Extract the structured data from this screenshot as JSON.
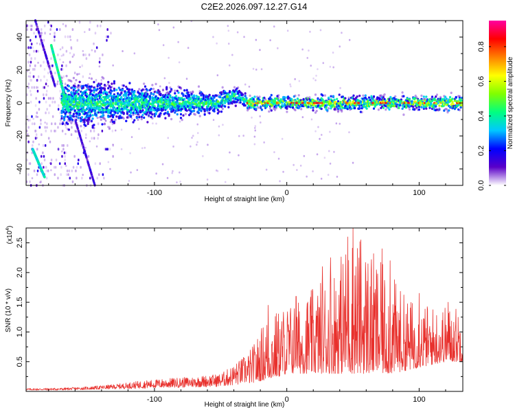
{
  "figure_title": "C2E2.2026.097.12.27.G14",
  "chart_data": [
    {
      "type": "heatmap",
      "title": "C2E2.2026.097.12.27.G14",
      "xlabel": "Height of straight line (km)",
      "ylabel": "Frequency (Hz)",
      "xlim": [
        -197,
        133
      ],
      "ylim": [
        -50,
        50
      ],
      "x_ticks": [
        -100,
        0,
        100
      ],
      "y_ticks": [
        -40,
        -20,
        0,
        20,
        40
      ],
      "colorbar": {
        "label": "Normalized spectral amplitude",
        "range": [
          0,
          0.95
        ],
        "ticks": [
          0.0,
          0.2,
          0.4,
          0.6,
          0.8
        ],
        "tick_labels": [
          "0.0",
          "0.2",
          "0.4",
          "0.6",
          "0.8"
        ],
        "colormap": [
          "#ffffff",
          "#5a00c8",
          "#0000ff",
          "#00c8ff",
          "#00ff80",
          "#80ff00",
          "#ffff00",
          "#ff8000",
          "#ff0000",
          "#ff00a0"
        ]
      },
      "features": {
        "main_band_center_hz": 0,
        "main_band_width_hz_near_side": 14,
        "main_band_width_hz_far_side": 5,
        "band_bump_km": [
          -50,
          -40
        ],
        "band_bump_hz": 4,
        "noise_region_km": [
          -197,
          -130
        ],
        "streak_1": {
          "x_km": [
            -178,
            -165
          ],
          "y_hz": [
            35,
            -5
          ]
        },
        "streak_2": {
          "x_km": [
            -192,
            -183
          ],
          "y_hz": [
            -28,
            -45
          ]
        }
      }
    },
    {
      "type": "line",
      "title": "",
      "xlabel": "Height of straight line (km)",
      "ylabel": "SNR (10 * v/v)",
      "scale_label": "(x10",
      "scale_exponent": "4",
      "scale_label_close": ")",
      "xlim": [
        -197,
        133
      ],
      "ylim": [
        0,
        2.75
      ],
      "x_ticks": [
        -100,
        0,
        100
      ],
      "y_ticks": [
        0.5,
        1.0,
        1.5,
        2.0,
        2.5
      ],
      "y_tick_labels": [
        "0.5",
        "1.0",
        "1.5",
        "2.0",
        "2.5"
      ],
      "color": "#e8302c",
      "envelope": {
        "x": [
          -197,
          -170,
          -150,
          -130,
          -110,
          -90,
          -70,
          -50,
          -40,
          -32,
          -25,
          -15,
          -5,
          0,
          10,
          20,
          30,
          40,
          50,
          60,
          70,
          80,
          90,
          100,
          110,
          120,
          133
        ],
        "min": [
          0.02,
          0.02,
          0.03,
          0.04,
          0.05,
          0.06,
          0.07,
          0.08,
          0.1,
          0.12,
          0.15,
          0.2,
          0.25,
          0.3,
          0.3,
          0.3,
          0.3,
          0.3,
          0.3,
          0.3,
          0.3,
          0.3,
          0.35,
          0.4,
          0.45,
          0.5,
          0.5
        ],
        "max": [
          0.05,
          0.06,
          0.08,
          0.12,
          0.18,
          0.22,
          0.25,
          0.3,
          0.45,
          0.6,
          0.8,
          1.3,
          1.4,
          1.5,
          1.55,
          1.75,
          2.0,
          2.3,
          2.7,
          2.5,
          2.2,
          1.95,
          1.6,
          1.5,
          1.45,
          1.45,
          1.45
        ]
      },
      "peaks": [
        {
          "x": -14,
          "y": 1.45
        },
        {
          "x": 7,
          "y": 1.6
        },
        {
          "x": 27,
          "y": 2.1
        },
        {
          "x": 33,
          "y": 2.25
        },
        {
          "x": 46,
          "y": 2.6
        },
        {
          "x": 50,
          "y": 2.75
        },
        {
          "x": 56,
          "y": 2.55
        },
        {
          "x": 72,
          "y": 2.4
        },
        {
          "x": 78,
          "y": 2.2
        },
        {
          "x": 100,
          "y": 1.65
        },
        {
          "x": 122,
          "y": 1.5
        }
      ]
    }
  ]
}
